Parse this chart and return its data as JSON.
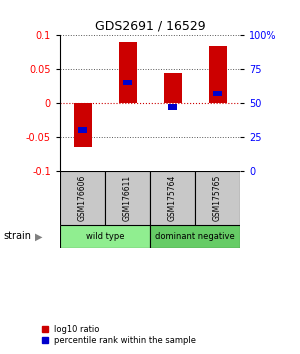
{
  "title": "GDS2691 / 16529",
  "samples": [
    "GSM176606",
    "GSM176611",
    "GSM175764",
    "GSM175765"
  ],
  "log10_ratio": [
    -0.065,
    0.09,
    0.045,
    0.085
  ],
  "percentile_rank": [
    0.3,
    0.65,
    0.47,
    0.57
  ],
  "ylim": [
    -0.1,
    0.1
  ],
  "yticks": [
    -0.1,
    -0.05,
    0,
    0.05,
    0.1
  ],
  "y2ticks": [
    0,
    25,
    50,
    75,
    100
  ],
  "y2tick_labels": [
    "0",
    "25",
    "50",
    "75",
    "100%"
  ],
  "groups": [
    {
      "label": "wild type",
      "samples": [
        0,
        1
      ],
      "color": "#90EE90"
    },
    {
      "label": "dominant negative",
      "samples": [
        2,
        3
      ],
      "color": "#66CC66"
    }
  ],
  "bar_color_red": "#CC0000",
  "bar_color_blue": "#0000CC",
  "bar_width": 0.4,
  "blue_bar_width": 0.18,
  "dotted_color": "#555555",
  "zero_line_color": "#CC0000",
  "background_label": "#C8C8C8",
  "legend_red_label": "log10 ratio",
  "legend_blue_label": "percentile rank within the sample"
}
